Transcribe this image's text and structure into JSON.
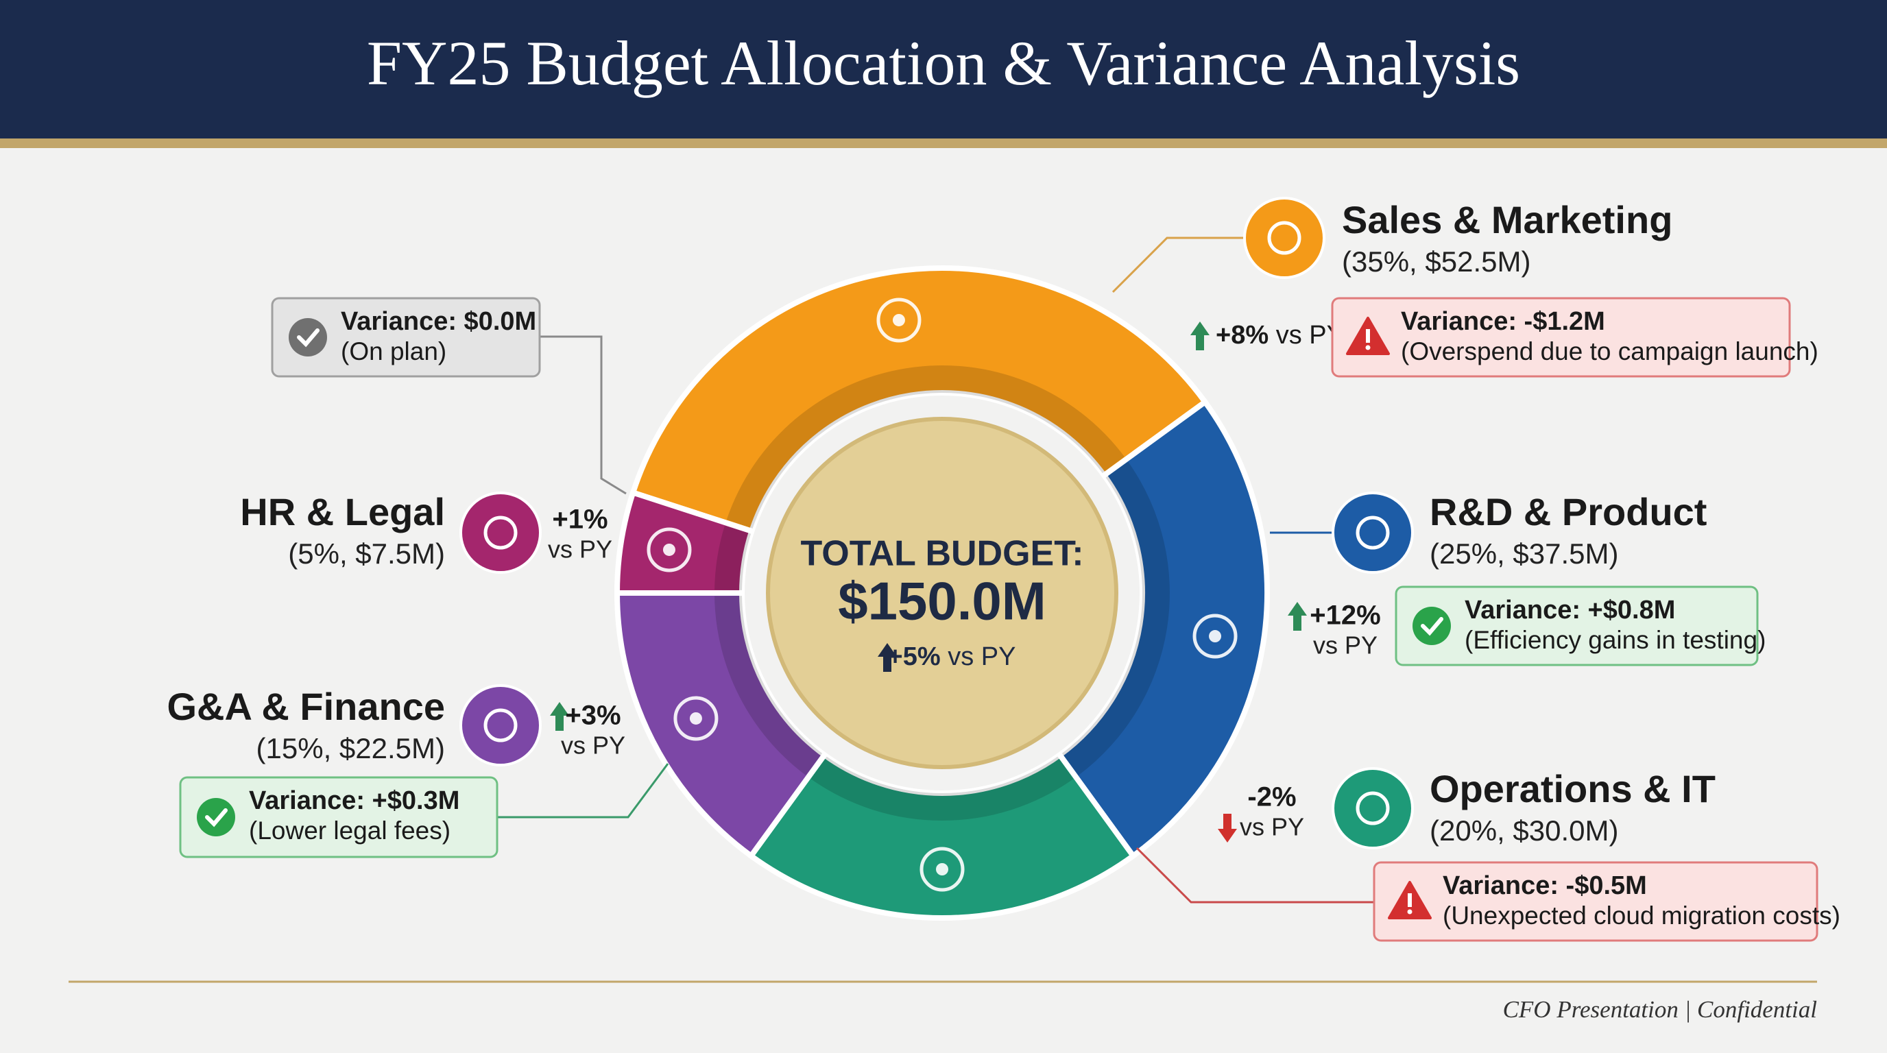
{
  "chart_data": {
    "type": "donut",
    "title": "FY25 Budget Allocation & Variance Analysis",
    "center_label": "TOTAL BUDGET:",
    "center_value": "$150.0M",
    "center_change": "+5%",
    "change_suffix": "vs PY",
    "categories": [
      "Sales & Marketing",
      "R&D & Product",
      "Operations & IT",
      "G&A & Finance",
      "HR & Legal"
    ],
    "values": [
      35,
      25,
      20,
      15,
      5
    ],
    "value_labels": [
      "(35%, $52.5M)",
      "(25%, $37.5M)",
      "(20%, $30.0M)",
      "(15%, $22.5M)",
      "(5%, $7.5M)"
    ],
    "colors": [
      "#f49a18",
      "#1d5ca6",
      "#1e9a78",
      "#7c47a6",
      "#a4266d"
    ],
    "changes": [
      "+8%",
      "+12%",
      "-2%",
      "+3%",
      "+1%"
    ],
    "variances": [
      {
        "label": "Variance: -$1.2M",
        "note": "(Overspend due to campaign launch)",
        "status": "bad"
      },
      {
        "label": "Variance: +$0.8M",
        "note": "(Efficiency gains in testing)",
        "status": "good"
      },
      {
        "label": "Variance: -$0.5M",
        "note": "(Unexpected cloud migration costs)",
        "status": "bad"
      },
      {
        "label": "Variance: +$0.3M",
        "note": "(Lower legal fees)",
        "status": "good"
      },
      {
        "label": "Variance: $0.0M",
        "note": "(On plan)",
        "status": "neutral"
      }
    ]
  },
  "footer": "CFO Presentation | Confidential"
}
